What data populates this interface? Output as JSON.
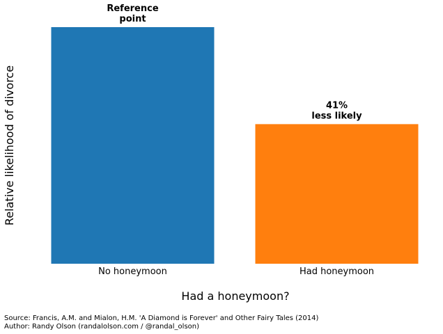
{
  "chart_data": {
    "type": "bar",
    "categories": [
      "No honeymoon",
      "Had honeymoon"
    ],
    "values": [
      1.0,
      0.59
    ],
    "colors": [
      "#1f77b4",
      "#ff7f0e"
    ],
    "annotations": [
      [
        "Reference",
        "point"
      ],
      [
        "41%",
        "less likely"
      ]
    ],
    "title": "",
    "xlabel": "Had a honeymoon?",
    "ylabel": "Relative likelihood of divorce",
    "ylim": [
      0,
      1.0
    ],
    "grid": false,
    "legend": "none"
  },
  "footer": {
    "source": "Source: Francis, A.M. and Mialon, H.M. 'A Diamond is Forever' and Other Fairy Tales (2014)",
    "author": "Author: Randy Olson (randalolson.com / @randal_olson)"
  }
}
